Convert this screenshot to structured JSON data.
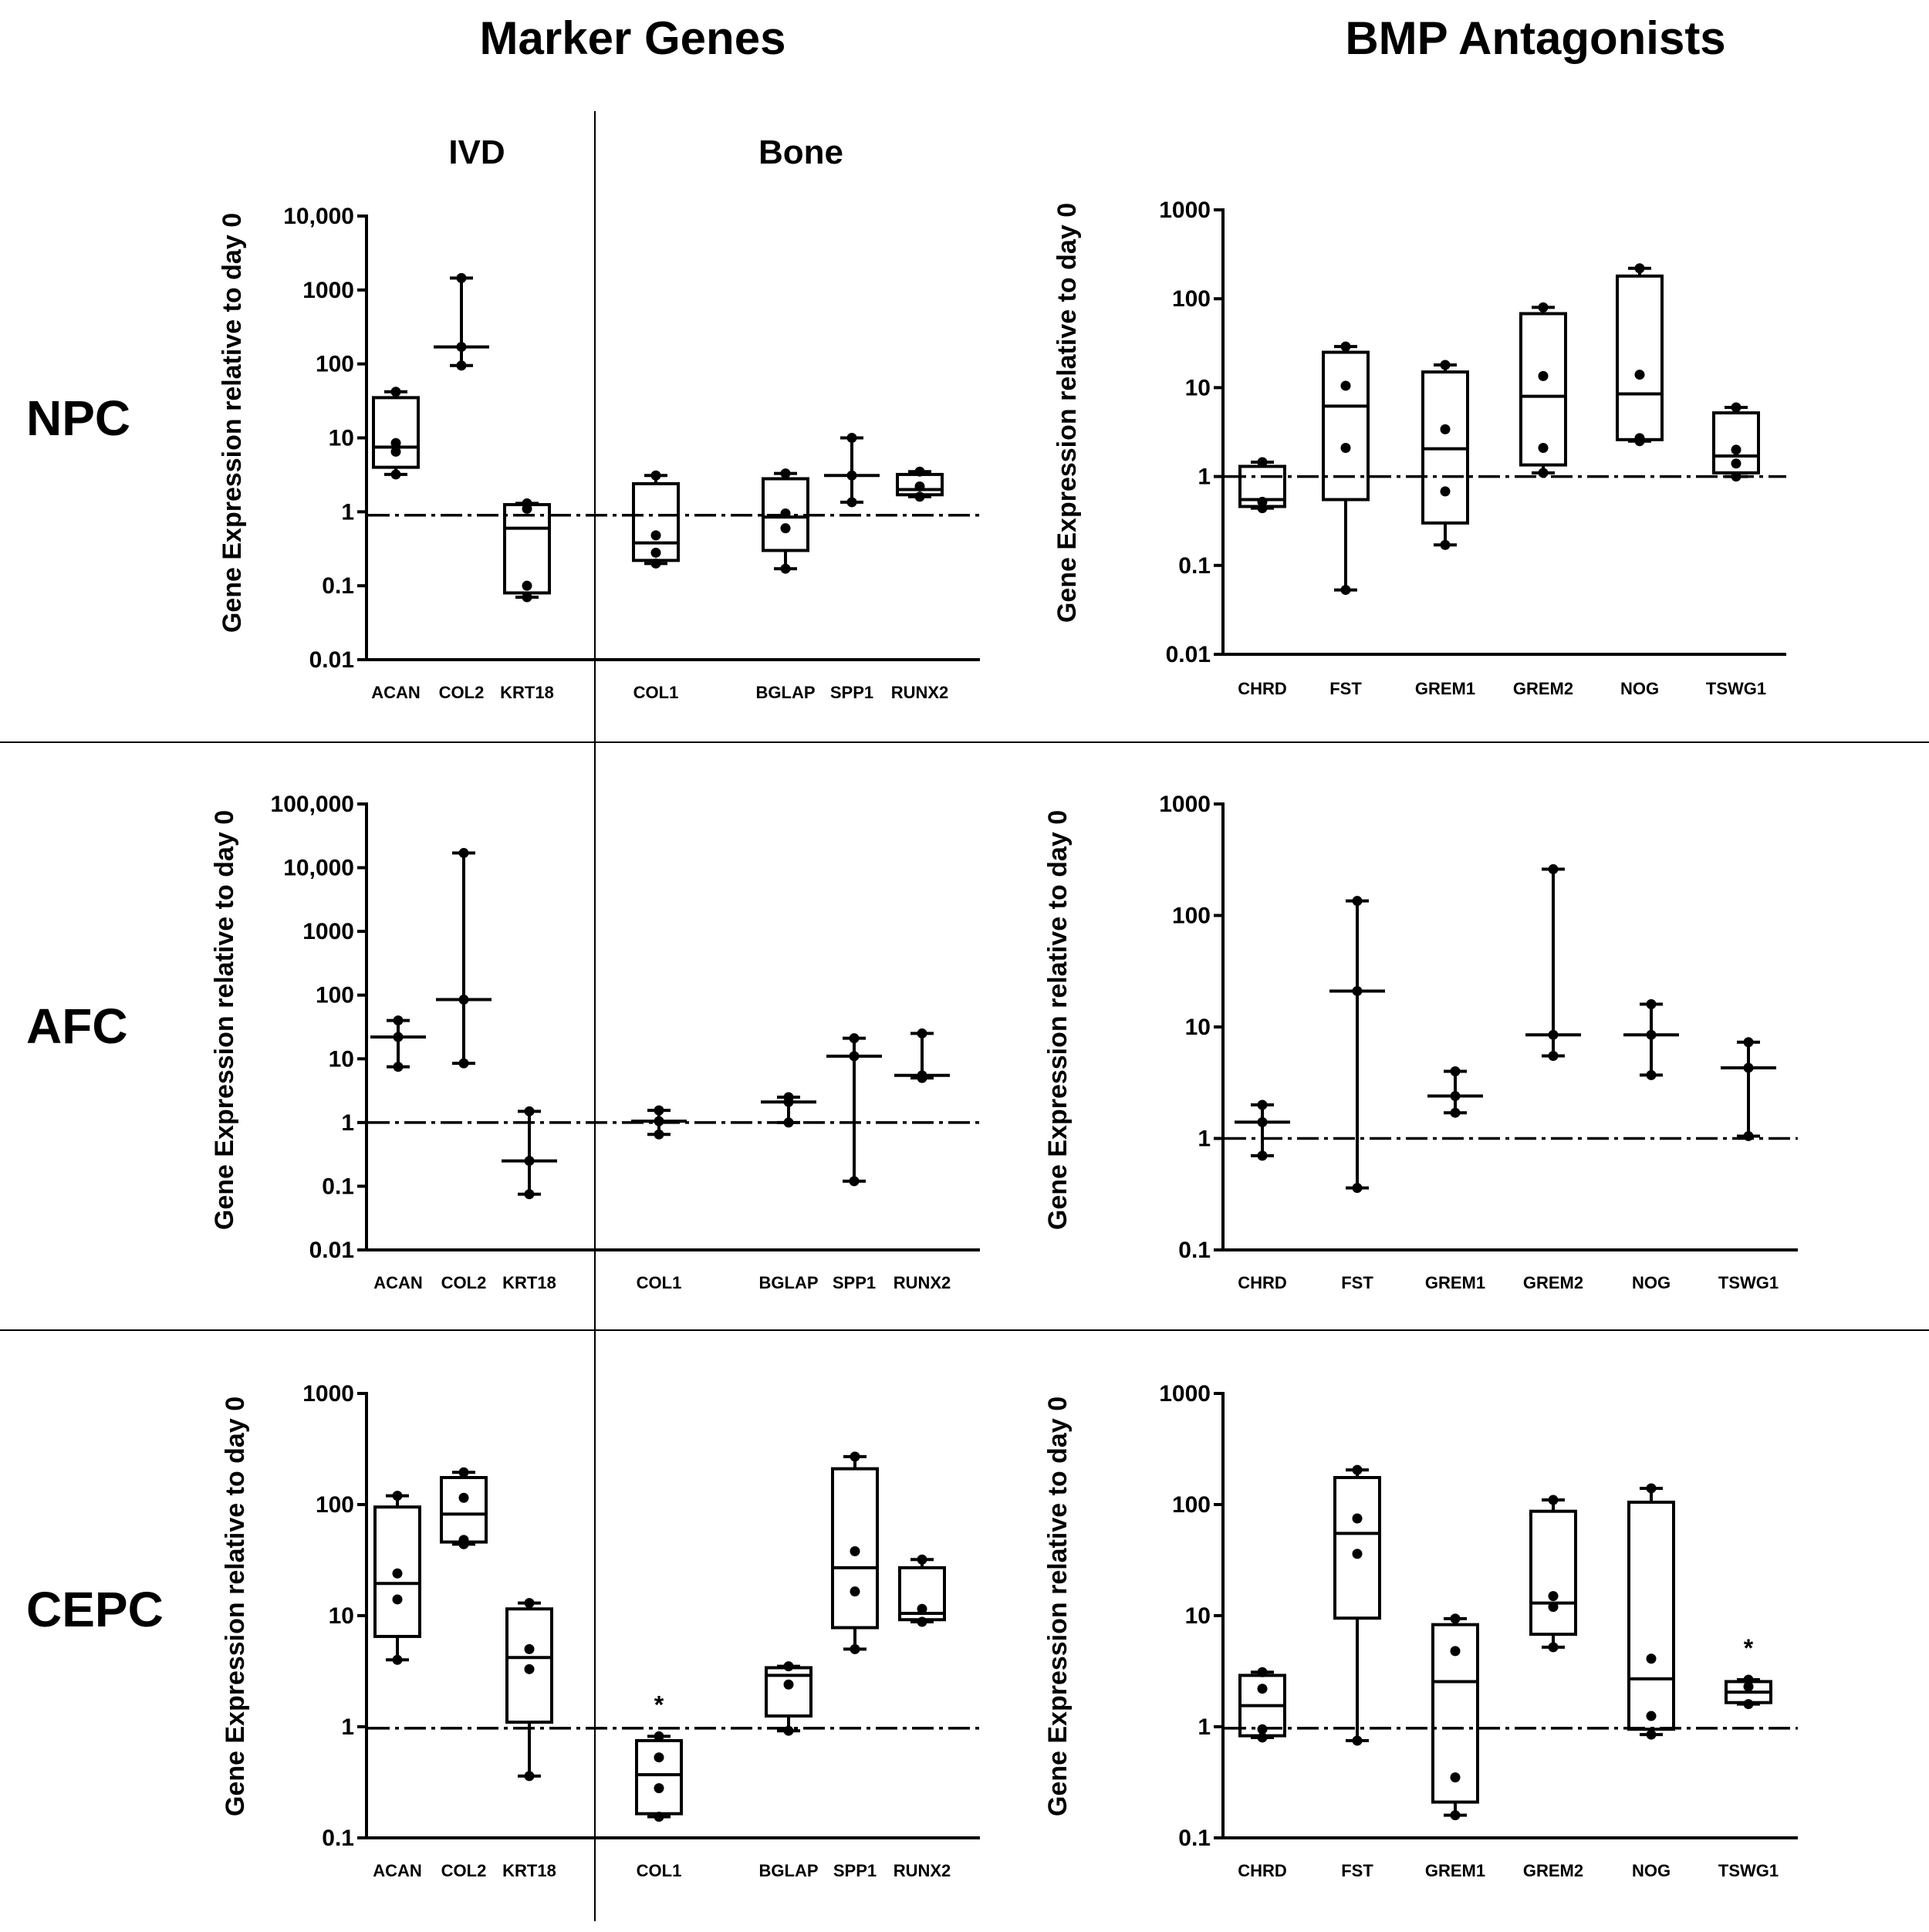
{
  "column_titles": [
    "Marker Genes",
    "BMP Antagonists"
  ],
  "row_labels": [
    "NPC",
    "AFC",
    "CEPC"
  ],
  "section_labels": [
    "IVD",
    "Bone"
  ],
  "y_axis_label": "Gene Expression relative to day 0",
  "chart_data": [
    {
      "id": "npc-marker",
      "type": "box",
      "row": "NPC",
      "group": "Marker Genes",
      "ylabel": "Gene Expression relative to day 0",
      "yscale": "log",
      "ylim": [
        0.01,
        10000
      ],
      "yticks": [
        {
          "v": 0.01,
          "label": "0.01"
        },
        {
          "v": 0.1,
          "label": "0.1"
        },
        {
          "v": 1,
          "label": "1"
        },
        {
          "v": 10,
          "label": "10"
        },
        {
          "v": 100,
          "label": "100"
        },
        {
          "v": 1000,
          "label": "1000"
        },
        {
          "v": 10000,
          "label": "10,000"
        }
      ],
      "reference_line": 0.9,
      "series": [
        {
          "name": "ACAN",
          "min": 3.2,
          "q1": 4,
          "median": 7.5,
          "q3": 35,
          "max": 42,
          "points": [
            3.2,
            6.5,
            8.5,
            42
          ]
        },
        {
          "name": "COL2",
          "min": 95,
          "q1": 170,
          "median": 170,
          "q3": 170,
          "max": 1450,
          "points": [
            95,
            170,
            1450
          ]
        },
        {
          "name": "KRT18",
          "min": 0.07,
          "q1": 0.08,
          "median": 0.6,
          "q3": 1.25,
          "max": 1.3,
          "points": [
            0.07,
            0.1,
            1.1,
            1.3
          ]
        },
        {
          "name": "COL1",
          "min": 0.2,
          "q1": 0.22,
          "median": 0.38,
          "q3": 2.4,
          "max": 3.1,
          "points": [
            0.2,
            0.28,
            0.48,
            3.1
          ]
        },
        {
          "name": "BGLAP",
          "min": 0.17,
          "q1": 0.3,
          "median": 0.85,
          "q3": 2.8,
          "max": 3.3,
          "points": [
            0.17,
            0.6,
            0.95,
            3.3
          ]
        },
        {
          "name": "SPP1",
          "min": 1.35,
          "q1": 3.1,
          "median": 3.1,
          "q3": 3.1,
          "max": 10,
          "points": [
            1.35,
            3.1,
            10
          ]
        },
        {
          "name": "RUNX2",
          "min": 1.6,
          "q1": 1.7,
          "median": 2.0,
          "q3": 3.2,
          "max": 3.5,
          "points": [
            1.6,
            2.2,
            3.5
          ]
        }
      ]
    },
    {
      "id": "npc-bmp",
      "type": "box",
      "row": "NPC",
      "group": "BMP Antagonists",
      "ylabel": "Gene Expression relative to day 0",
      "yscale": "log",
      "ylim": [
        0.01,
        1000
      ],
      "yticks": [
        {
          "v": 0.01,
          "label": "0.01"
        },
        {
          "v": 0.1,
          "label": "0.1"
        },
        {
          "v": 1,
          "label": "1"
        },
        {
          "v": 10,
          "label": "10"
        },
        {
          "v": 100,
          "label": "100"
        },
        {
          "v": 1000,
          "label": "1000"
        }
      ],
      "reference_line": 1,
      "series": [
        {
          "name": "CHRD",
          "min": 0.44,
          "q1": 0.46,
          "median": 0.55,
          "q3": 1.3,
          "max": 1.45,
          "points": [
            0.44,
            0.52,
            1.45
          ]
        },
        {
          "name": "FST",
          "min": 0.053,
          "q1": 0.55,
          "median": 6.2,
          "q3": 25,
          "max": 29,
          "points": [
            0.053,
            2.1,
            10.5,
            29
          ]
        },
        {
          "name": "GREM1",
          "min": 0.17,
          "q1": 0.3,
          "median": 2.05,
          "q3": 15,
          "max": 18,
          "points": [
            0.17,
            0.68,
            3.4,
            18
          ]
        },
        {
          "name": "GREM2",
          "min": 1.1,
          "q1": 1.35,
          "median": 8,
          "q3": 68,
          "max": 80,
          "points": [
            1.1,
            2.1,
            13.5,
            80
          ]
        },
        {
          "name": "NOG",
          "min": 2.5,
          "q1": 2.6,
          "median": 8.5,
          "q3": 180,
          "max": 220,
          "points": [
            2.5,
            2.7,
            14,
            220
          ]
        },
        {
          "name": "TSWG1",
          "min": 1.0,
          "q1": 1.1,
          "median": 1.7,
          "q3": 5.2,
          "max": 6,
          "points": [
            1.0,
            1.4,
            2.0,
            6
          ]
        }
      ]
    },
    {
      "id": "afc-marker",
      "type": "box",
      "row": "AFC",
      "group": "Marker Genes",
      "ylabel": "Gene Expression relative to day 0",
      "yscale": "log",
      "ylim": [
        0.01,
        100000
      ],
      "yticks": [
        {
          "v": 0.01,
          "label": "0.01"
        },
        {
          "v": 0.1,
          "label": "0.1"
        },
        {
          "v": 1,
          "label": "1"
        },
        {
          "v": 10,
          "label": "10"
        },
        {
          "v": 100,
          "label": "100"
        },
        {
          "v": 1000,
          "label": "1000"
        },
        {
          "v": 10000,
          "label": "10,000"
        },
        {
          "v": 100000,
          "label": "100,000"
        }
      ],
      "reference_line": 1,
      "series": [
        {
          "name": "ACAN",
          "min": 7.5,
          "q1": 22,
          "median": 22,
          "q3": 22,
          "max": 40,
          "points": [
            7.5,
            22,
            40
          ]
        },
        {
          "name": "COL2",
          "min": 8.5,
          "q1": 85,
          "median": 85,
          "q3": 85,
          "max": 17000,
          "points": [
            8.5,
            85,
            17000
          ]
        },
        {
          "name": "KRT18",
          "min": 0.075,
          "q1": 0.25,
          "median": 0.25,
          "q3": 0.25,
          "max": 1.5,
          "points": [
            0.075,
            0.25,
            1.5
          ]
        },
        {
          "name": "COL1",
          "min": 0.65,
          "q1": 1.05,
          "median": 1.05,
          "q3": 1.05,
          "max": 1.55,
          "points": [
            0.65,
            1.05,
            1.55
          ]
        },
        {
          "name": "BGLAP",
          "min": 1.0,
          "q1": 2.1,
          "median": 2.1,
          "q3": 2.1,
          "max": 2.5,
          "points": [
            1.0,
            2.1,
            2.5
          ]
        },
        {
          "name": "SPP1",
          "min": 0.12,
          "q1": 11,
          "median": 11,
          "q3": 11,
          "max": 21,
          "points": [
            0.12,
            11,
            21
          ]
        },
        {
          "name": "RUNX2",
          "min": 5.0,
          "q1": 5.5,
          "median": 5.5,
          "q3": 5.5,
          "max": 25,
          "points": [
            5.0,
            5.5,
            25
          ]
        }
      ]
    },
    {
      "id": "afc-bmp",
      "type": "box",
      "row": "AFC",
      "group": "BMP Antagonists",
      "ylabel": "Gene Expression relative to day 0",
      "yscale": "log",
      "ylim": [
        0.1,
        1000
      ],
      "yticks": [
        {
          "v": 0.1,
          "label": "0.1"
        },
        {
          "v": 1,
          "label": "1"
        },
        {
          "v": 10,
          "label": "10"
        },
        {
          "v": 100,
          "label": "100"
        },
        {
          "v": 1000,
          "label": "1000"
        }
      ],
      "reference_line": 1,
      "series": [
        {
          "name": "CHRD",
          "min": 0.7,
          "q1": 1.4,
          "median": 1.4,
          "q3": 1.4,
          "max": 2.0,
          "points": [
            0.7,
            1.4,
            2.0
          ]
        },
        {
          "name": "FST",
          "min": 0.36,
          "q1": 21,
          "median": 21,
          "q3": 21,
          "max": 135,
          "points": [
            0.36,
            21,
            135
          ]
        },
        {
          "name": "GREM1",
          "min": 1.7,
          "q1": 2.4,
          "median": 2.4,
          "q3": 2.4,
          "max": 4.0,
          "points": [
            1.7,
            2.4,
            4.0
          ]
        },
        {
          "name": "GREM2",
          "min": 5.5,
          "q1": 8.5,
          "median": 8.5,
          "q3": 8.5,
          "max": 260,
          "points": [
            5.5,
            8.5,
            260
          ]
        },
        {
          "name": "NOG",
          "min": 3.7,
          "q1": 8.5,
          "median": 8.5,
          "q3": 8.5,
          "max": 16,
          "points": [
            3.7,
            8.5,
            16
          ]
        },
        {
          "name": "TSWG1",
          "min": 1.05,
          "q1": 4.3,
          "median": 4.3,
          "q3": 4.3,
          "max": 7.3,
          "points": [
            1.05,
            4.3,
            7.3
          ]
        }
      ]
    },
    {
      "id": "cepc-marker",
      "type": "box",
      "row": "CEPC",
      "group": "Marker Genes",
      "ylabel": "Gene Expression relative to day 0",
      "yscale": "log",
      "ylim": [
        0.1,
        1000
      ],
      "yticks": [
        {
          "v": 0.1,
          "label": "0.1"
        },
        {
          "v": 1,
          "label": "1"
        },
        {
          "v": 10,
          "label": "10"
        },
        {
          "v": 100,
          "label": "100"
        },
        {
          "v": 1000,
          "label": "1000"
        }
      ],
      "reference_line": 0.97,
      "series": [
        {
          "name": "ACAN",
          "min": 4.0,
          "q1": 6.5,
          "median": 19.5,
          "q3": 95,
          "max": 120,
          "points": [
            4.0,
            14,
            24,
            120
          ]
        },
        {
          "name": "COL2",
          "min": 44,
          "q1": 46,
          "median": 82,
          "q3": 175,
          "max": 195,
          "points": [
            44,
            48,
            115,
            195
          ]
        },
        {
          "name": "KRT18",
          "min": 0.36,
          "q1": 1.1,
          "median": 4.2,
          "q3": 11.5,
          "max": 13,
          "points": [
            0.36,
            3.3,
            5.0,
            13
          ]
        },
        {
          "name": "COL1",
          "min": 0.155,
          "q1": 0.165,
          "median": 0.37,
          "q3": 0.75,
          "max": 0.82,
          "points": [
            0.155,
            0.28,
            0.53,
            0.82
          ],
          "marker": "*"
        },
        {
          "name": "BGLAP",
          "min": 0.92,
          "q1": 1.25,
          "median": 2.9,
          "q3": 3.4,
          "max": 3.5,
          "points": [
            0.92,
            2.4,
            3.5
          ]
        },
        {
          "name": "SPP1",
          "min": 5.0,
          "q1": 7.8,
          "median": 27,
          "q3": 210,
          "max": 270,
          "points": [
            5.0,
            16.5,
            38,
            270
          ]
        },
        {
          "name": "RUNX2",
          "min": 8.8,
          "q1": 9.2,
          "median": 10.5,
          "q3": 27,
          "max": 32,
          "points": [
            8.8,
            11.5,
            32
          ]
        }
      ]
    },
    {
      "id": "cepc-bmp",
      "type": "box",
      "row": "CEPC",
      "group": "BMP Antagonists",
      "ylabel": "Gene Expression relative to day 0",
      "yscale": "log",
      "ylim": [
        0.1,
        1000
      ],
      "yticks": [
        {
          "v": 0.1,
          "label": "0.1"
        },
        {
          "v": 1,
          "label": "1"
        },
        {
          "v": 10,
          "label": "10"
        },
        {
          "v": 100,
          "label": "100"
        },
        {
          "v": 1000,
          "label": "1000"
        }
      ],
      "reference_line": 0.97,
      "series": [
        {
          "name": "CHRD",
          "min": 0.8,
          "q1": 0.83,
          "median": 1.55,
          "q3": 2.9,
          "max": 3.1,
          "points": [
            0.8,
            0.95,
            2.2,
            3.1
          ]
        },
        {
          "name": "FST",
          "min": 0.75,
          "q1": 9.5,
          "median": 55,
          "q3": 175,
          "max": 205,
          "points": [
            0.75,
            36,
            75,
            205
          ]
        },
        {
          "name": "GREM1",
          "min": 0.16,
          "q1": 0.21,
          "median": 2.55,
          "q3": 8.3,
          "max": 9.4,
          "points": [
            0.16,
            0.35,
            4.8,
            9.4
          ]
        },
        {
          "name": "GREM2",
          "min": 5.2,
          "q1": 6.8,
          "median": 13,
          "q3": 87,
          "max": 110,
          "points": [
            5.2,
            12,
            15,
            110
          ]
        },
        {
          "name": "NOG",
          "min": 0.85,
          "q1": 0.95,
          "median": 2.7,
          "q3": 105,
          "max": 140,
          "points": [
            0.85,
            1.25,
            4.1,
            140
          ]
        },
        {
          "name": "TSWG1",
          "min": 1.6,
          "q1": 1.65,
          "median": 2.05,
          "q3": 2.55,
          "max": 2.65,
          "points": [
            1.6,
            2.3,
            2.65
          ],
          "marker": "*"
        }
      ]
    }
  ]
}
